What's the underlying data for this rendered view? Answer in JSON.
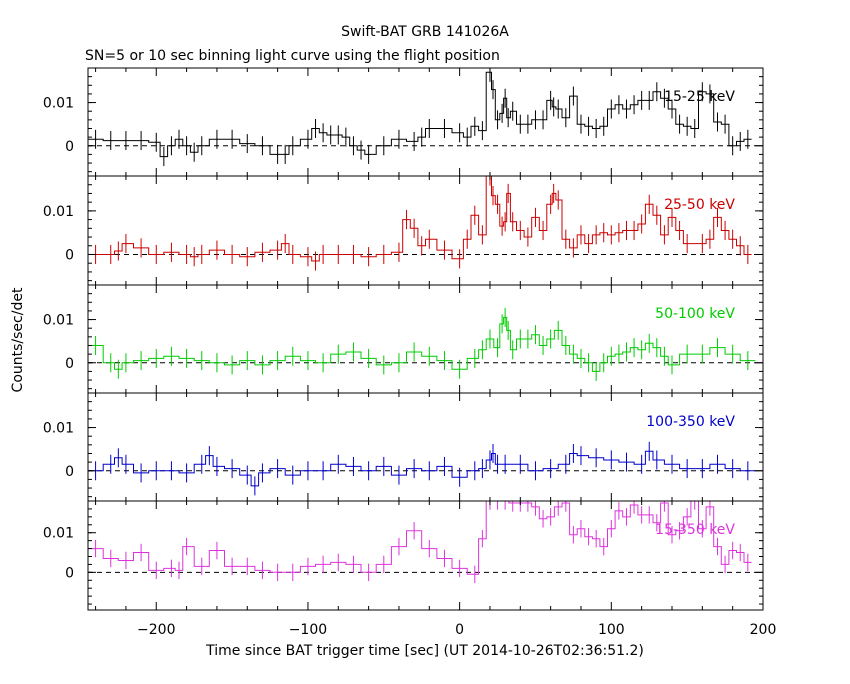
{
  "title": "Swift-BAT GRB 141026A",
  "subtitle": "SN=5 or 10 sec binning light curve using the flight position",
  "ylabel": "Counts/sec/det",
  "xlabel": "Time since BAT trigger time [sec] (UT 2014-10-26T02:36:51.2)",
  "chart_data": [
    {
      "type": "line",
      "band": "15-25 keV",
      "color": "#000000",
      "xlim": [
        -245,
        200
      ],
      "ylim": [
        -0.007,
        0.018
      ],
      "yticks": [
        0,
        0.01
      ],
      "ytick_labels": [
        "0",
        "0.01"
      ],
      "x": [
        -240,
        -230,
        -220,
        -210,
        -200,
        -195,
        -190,
        -185,
        -180,
        -175,
        -170,
        -160,
        -150,
        -140,
        -130,
        -120,
        -115,
        -110,
        -100,
        -95,
        -90,
        -85,
        -80,
        -75,
        -70,
        -65,
        -60,
        -50,
        -40,
        -30,
        -25,
        -20,
        -10,
        0,
        5,
        10,
        15,
        20,
        22,
        25,
        28,
        30,
        32,
        35,
        40,
        45,
        50,
        55,
        60,
        62,
        65,
        70,
        75,
        80,
        85,
        90,
        95,
        100,
        105,
        110,
        115,
        120,
        125,
        130,
        135,
        140,
        145,
        150,
        155,
        160,
        165,
        170,
        175,
        180,
        185,
        190
      ],
      "y": [
        0.0015,
        0.0012,
        0.0012,
        0.0012,
        0.0008,
        -0.0025,
        0.0,
        0.0015,
        0.0,
        -0.0015,
        0.0,
        0.0015,
        0.0015,
        0.0005,
        0.0,
        -0.002,
        -0.002,
        0.0,
        0.0015,
        0.004,
        0.003,
        0.0025,
        0.0025,
        0.002,
        0.0,
        -0.001,
        -0.002,
        0.0,
        0.0015,
        0.001,
        0.002,
        0.004,
        0.004,
        0.003,
        0.002,
        0.0045,
        0.0035,
        0.017,
        0.013,
        0.006,
        0.0075,
        0.011,
        0.0065,
        0.008,
        0.005,
        0.005,
        0.006,
        0.006,
        0.0105,
        0.009,
        0.0085,
        0.0065,
        0.0115,
        0.005,
        0.0045,
        0.004,
        0.0045,
        0.0085,
        0.0095,
        0.0085,
        0.0095,
        0.0105,
        0.0105,
        0.0125,
        0.011,
        0.0085,
        0.005,
        0.0045,
        0.004,
        0.0125,
        0.012,
        0.0055,
        0.005,
        0.0,
        0.001,
        0.0015
      ]
    },
    {
      "type": "line",
      "band": "25-50 keV",
      "color": "#cc0000",
      "xlim": [
        -245,
        200
      ],
      "ylim": [
        -0.007,
        0.018
      ],
      "yticks": [
        0,
        0.01
      ],
      "ytick_labels": [
        "0",
        "0.01"
      ],
      "x": [
        -240,
        -230,
        -225,
        -220,
        -210,
        -200,
        -190,
        -180,
        -175,
        -170,
        -160,
        -150,
        -140,
        -130,
        -120,
        -115,
        -110,
        -100,
        -95,
        -90,
        -80,
        -70,
        -60,
        -50,
        -40,
        -35,
        -30,
        -25,
        -20,
        -10,
        0,
        5,
        10,
        15,
        20,
        22,
        25,
        28,
        30,
        32,
        35,
        40,
        45,
        50,
        55,
        60,
        62,
        65,
        70,
        75,
        80,
        85,
        90,
        95,
        100,
        105,
        110,
        115,
        120,
        125,
        130,
        135,
        140,
        145,
        150,
        160,
        165,
        170,
        175,
        180,
        185,
        190
      ],
      "y": [
        0.0,
        0.0,
        0.0008,
        0.0025,
        0.0015,
        0.0,
        0.0005,
        0.0,
        -0.0005,
        0.0,
        0.001,
        0.0,
        -0.0005,
        0.0005,
        0.001,
        0.0025,
        0.0,
        -0.0005,
        -0.0015,
        0.0,
        0.0,
        0.0,
        -0.0005,
        0.0,
        0.0005,
        0.008,
        0.006,
        0.002,
        0.0035,
        0.001,
        -0.001,
        0.0035,
        0.009,
        0.0045,
        0.018,
        0.0135,
        0.0115,
        0.0065,
        0.0075,
        0.014,
        0.0075,
        0.0055,
        0.004,
        0.0085,
        0.0055,
        0.0115,
        0.014,
        0.0125,
        0.0035,
        0.0015,
        0.0045,
        0.0025,
        0.0045,
        0.005,
        0.0045,
        0.005,
        0.0055,
        0.0055,
        0.007,
        0.0115,
        0.009,
        0.0045,
        0.0085,
        0.0055,
        0.0025,
        0.0025,
        0.0035,
        0.0085,
        0.0055,
        0.0035,
        0.002,
        0.0
      ]
    },
    {
      "type": "line",
      "band": "50-100 keV",
      "color": "#00cc00",
      "xlim": [
        -245,
        200
      ],
      "ylim": [
        -0.007,
        0.018
      ],
      "yticks": [
        0,
        0.01
      ],
      "ytick_labels": [
        "0",
        "0.01"
      ],
      "x": [
        -240,
        -230,
        -225,
        -220,
        -210,
        -200,
        -190,
        -180,
        -170,
        -160,
        -150,
        -140,
        -130,
        -120,
        -110,
        -100,
        -90,
        -80,
        -70,
        -60,
        -50,
        -40,
        -30,
        -20,
        -10,
        0,
        10,
        15,
        20,
        25,
        28,
        30,
        32,
        35,
        40,
        45,
        50,
        55,
        60,
        65,
        70,
        75,
        80,
        85,
        90,
        95,
        100,
        105,
        110,
        115,
        120,
        125,
        130,
        135,
        140,
        150,
        160,
        170,
        180,
        190
      ],
      "y": [
        0.004,
        0.0,
        -0.0015,
        0.0,
        0.0005,
        0.001,
        0.0015,
        0.001,
        0.0005,
        0.0,
        -0.0005,
        0.0005,
        -0.0005,
        0.0005,
        0.0015,
        0.0005,
        0.0,
        0.002,
        0.0025,
        0.001,
        -0.0005,
        0.0,
        0.0025,
        0.0015,
        0.0005,
        -0.0015,
        0.001,
        0.003,
        0.0055,
        0.0035,
        0.009,
        0.0105,
        0.0075,
        0.003,
        0.0055,
        0.0055,
        0.0065,
        0.004,
        0.0055,
        0.0075,
        0.004,
        0.002,
        0.001,
        0.0,
        -0.002,
        0.0,
        0.0015,
        0.002,
        0.0025,
        0.0035,
        0.003,
        0.0045,
        0.0035,
        0.0015,
        -0.0005,
        0.002,
        0.002,
        0.0035,
        0.002,
        0.0005
      ]
    },
    {
      "type": "line",
      "band": "100-350 keV",
      "color": "#0000cc",
      "xlim": [
        -245,
        200
      ],
      "ylim": [
        -0.007,
        0.018
      ],
      "yticks": [
        0,
        0.01
      ],
      "ytick_labels": [
        "0",
        "0.01"
      ],
      "x": [
        -240,
        -230,
        -225,
        -220,
        -210,
        -200,
        -190,
        -180,
        -170,
        -165,
        -160,
        -150,
        -140,
        -135,
        -130,
        -120,
        -110,
        -100,
        -90,
        -80,
        -70,
        -60,
        -50,
        -40,
        -30,
        -20,
        -10,
        0,
        10,
        15,
        20,
        22,
        25,
        30,
        40,
        50,
        60,
        70,
        75,
        80,
        90,
        100,
        110,
        120,
        125,
        130,
        140,
        150,
        160,
        170,
        180,
        190
      ],
      "y": [
        0.0,
        0.0015,
        0.003,
        0.0015,
        -0.0005,
        0.0,
        0.0,
        -0.0005,
        0.0015,
        0.0035,
        0.001,
        0.0005,
        -0.001,
        -0.0035,
        -0.0005,
        0.0005,
        -0.001,
        0.0,
        0.0,
        0.0015,
        0.001,
        0.0,
        0.001,
        -0.001,
        0.0005,
        0.0,
        0.001,
        -0.0015,
        0.0,
        0.0005,
        0.0025,
        0.004,
        0.0015,
        0.0015,
        0.0015,
        0.0,
        0.0005,
        0.0015,
        0.004,
        0.0035,
        0.003,
        0.0025,
        0.002,
        0.0015,
        0.0045,
        0.0025,
        0.0015,
        0.0005,
        0.0005,
        0.0015,
        0.0005,
        0.0
      ]
    },
    {
      "type": "line",
      "band": "15-350 keV",
      "color": "#dd33dd",
      "xlim": [
        -245,
        200
      ],
      "ylim": [
        -0.0095,
        0.018
      ],
      "yticks": [
        0,
        0.01
      ],
      "ytick_labels": [
        "0",
        "0.01"
      ],
      "x": [
        -240,
        -230,
        -220,
        -210,
        -200,
        -190,
        -185,
        -180,
        -170,
        -160,
        -150,
        -140,
        -130,
        -120,
        -110,
        -100,
        -90,
        -80,
        -70,
        -60,
        -50,
        -40,
        -30,
        -20,
        -10,
        0,
        10,
        15,
        20,
        25,
        30,
        35,
        40,
        45,
        50,
        55,
        60,
        65,
        70,
        75,
        80,
        85,
        90,
        95,
        100,
        105,
        110,
        115,
        120,
        125,
        130,
        135,
        140,
        145,
        150,
        155,
        160,
        165,
        170,
        175,
        180,
        185,
        190
      ],
      "y": [
        0.006,
        0.0035,
        0.003,
        0.005,
        0.0005,
        0.001,
        0.0005,
        0.0065,
        0.0015,
        0.0055,
        0.0015,
        0.0015,
        0.0005,
        0.0,
        0.0,
        0.0015,
        0.002,
        0.0025,
        0.002,
        0.0,
        0.002,
        0.0065,
        0.0105,
        0.006,
        0.0035,
        0.001,
        -0.0005,
        0.0085,
        0.018,
        0.018,
        0.018,
        0.0175,
        0.0175,
        0.0175,
        0.0165,
        0.0135,
        0.014,
        0.0165,
        0.0175,
        0.0095,
        0.011,
        0.009,
        0.0085,
        0.0065,
        0.011,
        0.0155,
        0.014,
        0.017,
        0.0145,
        0.0145,
        0.0125,
        0.0175,
        0.0095,
        0.0105,
        0.014,
        0.018,
        0.011,
        0.0165,
        0.0065,
        0.002,
        0.0055,
        0.005,
        0.0025
      ]
    }
  ],
  "xaxis": {
    "ticks": [
      -200,
      -100,
      0,
      100,
      200
    ],
    "tick_labels": [
      "−200",
      "−100",
      "0",
      "100",
      "200"
    ]
  }
}
